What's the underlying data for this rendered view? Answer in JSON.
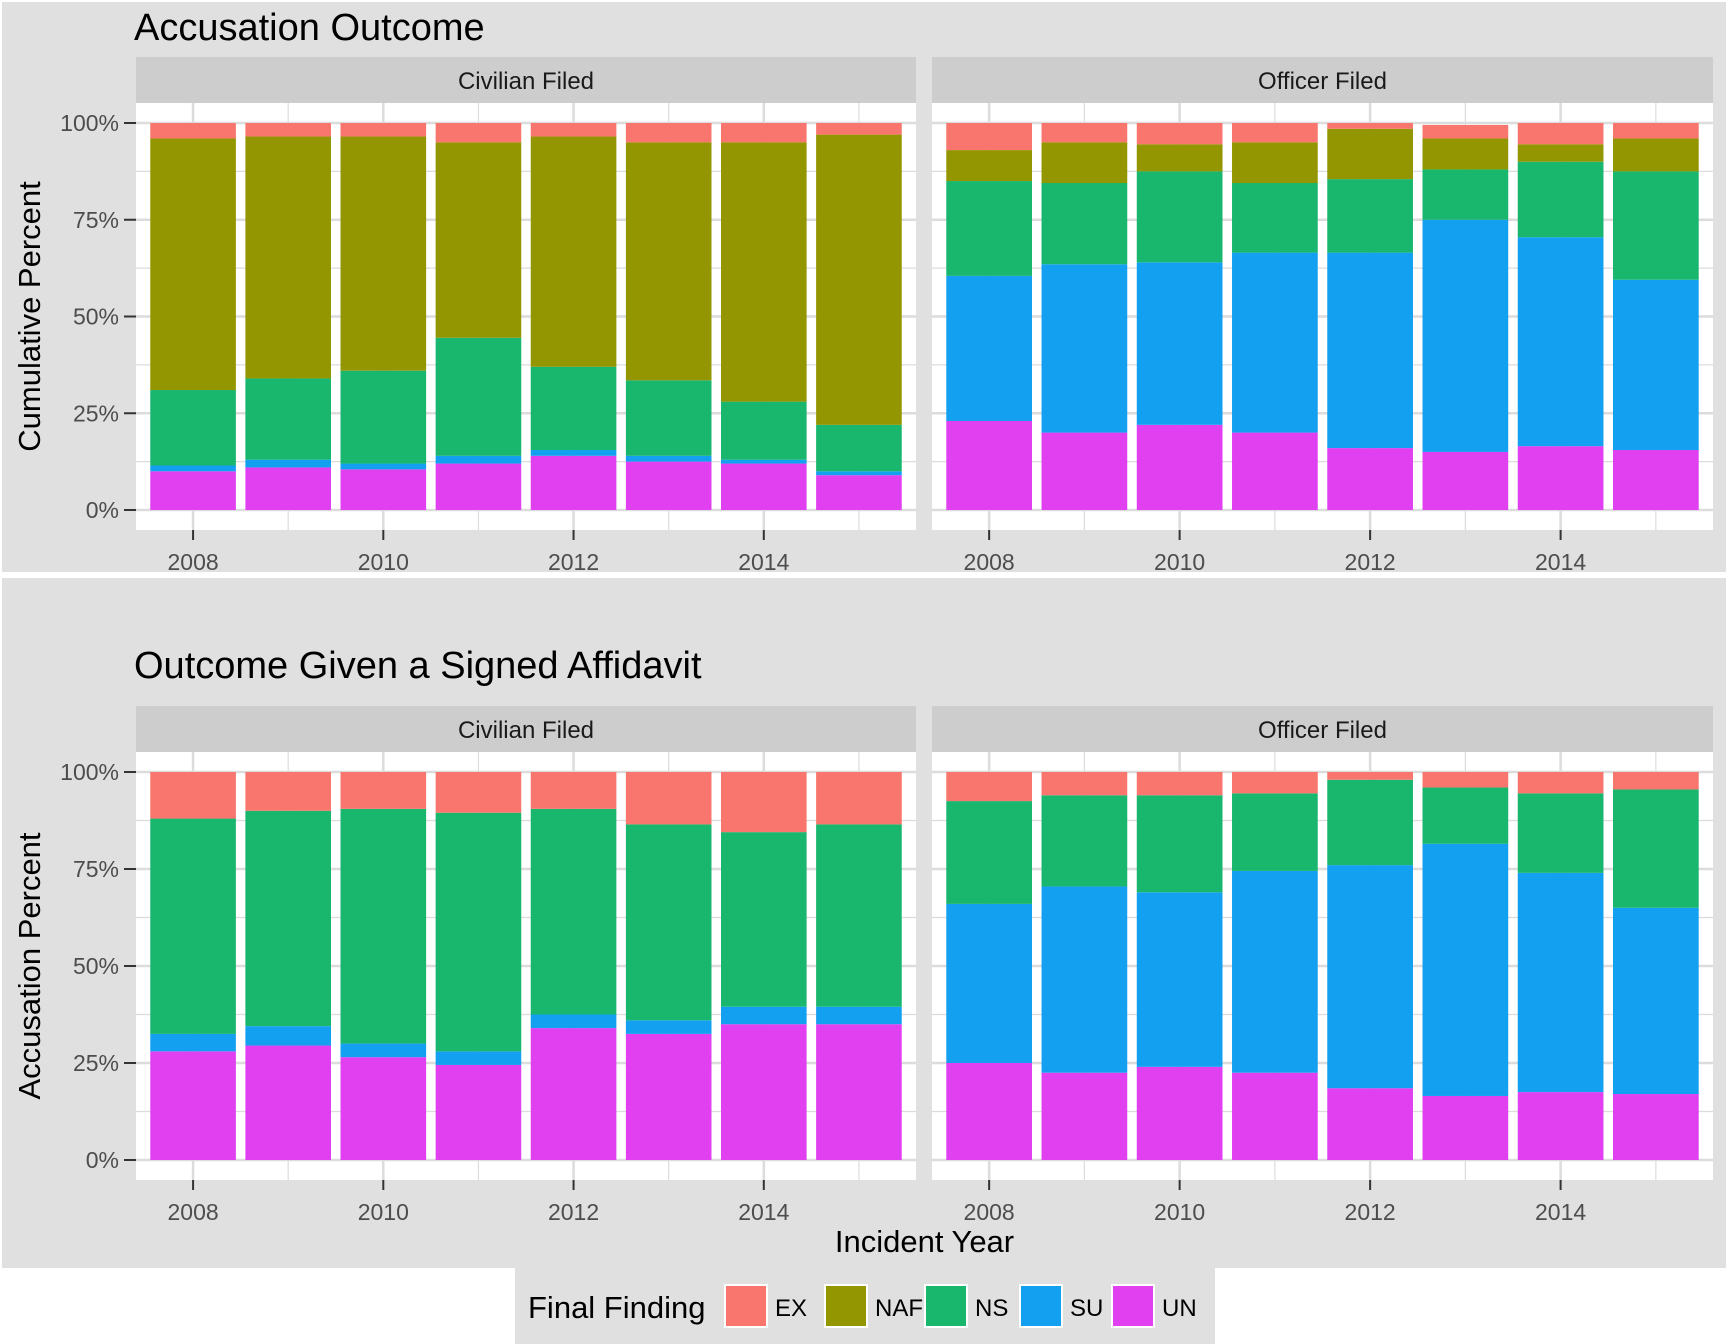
{
  "colors": {
    "EX": "#F8766D",
    "NAF": "#939600",
    "NS": "#19B66E",
    "SU": "#14A0F0",
    "UN": "#E040F0",
    "panel_bg": "#FFFFFF",
    "plot_bg": "#E0E0E0",
    "strip_bg": "#CDCDCD",
    "grid": "#DCDCDC"
  },
  "legend": {
    "title": "Final Finding",
    "items": [
      "EX",
      "NAF",
      "NS",
      "SU",
      "UN"
    ]
  },
  "chart_data": [
    {
      "type": "bar",
      "stacked": true,
      "title": "Accusation Outcome",
      "xlabel": "Incident Year",
      "ylabel": "Cumulative Percent",
      "ylim": [
        0,
        1
      ],
      "yticks": [
        "0%",
        "25%",
        "50%",
        "75%",
        "100%"
      ],
      "xticks": [
        "2008",
        "2010",
        "2012",
        "2014"
      ],
      "facets": [
        {
          "label": "Civilian  Filed",
          "x": [
            2008,
            2009,
            2010,
            2011,
            2012,
            2013,
            2014,
            2015
          ],
          "series": [
            {
              "name": "UN",
              "values": [
                0.1,
                0.11,
                0.105,
                0.12,
                0.14,
                0.125,
                0.12,
                0.09
              ]
            },
            {
              "name": "SU",
              "values": [
                0.015,
                0.02,
                0.015,
                0.02,
                0.015,
                0.015,
                0.01,
                0.01
              ]
            },
            {
              "name": "NS",
              "values": [
                0.195,
                0.21,
                0.24,
                0.305,
                0.215,
                0.195,
                0.15,
                0.12
              ]
            },
            {
              "name": "NAF",
              "values": [
                0.65,
                0.625,
                0.605,
                0.505,
                0.595,
                0.615,
                0.67,
                0.75
              ]
            },
            {
              "name": "EX",
              "values": [
                0.04,
                0.035,
                0.035,
                0.05,
                0.035,
                0.05,
                0.05,
                0.03
              ]
            }
          ]
        },
        {
          "label": "Officer  Filed",
          "x": [
            2008,
            2009,
            2010,
            2011,
            2012,
            2013,
            2014,
            2015
          ],
          "series": [
            {
              "name": "UN",
              "values": [
                0.23,
                0.2,
                0.22,
                0.2,
                0.16,
                0.15,
                0.165,
                0.155
              ]
            },
            {
              "name": "SU",
              "values": [
                0.375,
                0.435,
                0.42,
                0.465,
                0.505,
                0.6,
                0.54,
                0.44
              ]
            },
            {
              "name": "NS",
              "values": [
                0.245,
                0.21,
                0.235,
                0.18,
                0.19,
                0.13,
                0.195,
                0.28
              ]
            },
            {
              "name": "NAF",
              "values": [
                0.08,
                0.105,
                0.07,
                0.105,
                0.13,
                0.08,
                0.045,
                0.085
              ]
            },
            {
              "name": "EX",
              "values": [
                0.07,
                0.05,
                0.055,
                0.05,
                0.015,
                0.035,
                0.055,
                0.04
              ]
            }
          ]
        }
      ]
    },
    {
      "type": "bar",
      "stacked": true,
      "title": "Outcome Given a Signed Affidavit",
      "xlabel": "Incident Year",
      "ylabel": "Accusation Percent",
      "ylim": [
        0,
        1
      ],
      "yticks": [
        "0%",
        "25%",
        "50%",
        "75%",
        "100%"
      ],
      "xticks": [
        "2008",
        "2010",
        "2012",
        "2014"
      ],
      "facets": [
        {
          "label": "Civilian  Filed",
          "x": [
            2008,
            2009,
            2010,
            2011,
            2012,
            2013,
            2014,
            2015
          ],
          "series": [
            {
              "name": "UN",
              "values": [
                0.28,
                0.295,
                0.265,
                0.245,
                0.34,
                0.325,
                0.35,
                0.35
              ]
            },
            {
              "name": "SU",
              "values": [
                0.045,
                0.05,
                0.035,
                0.035,
                0.035,
                0.035,
                0.045,
                0.045
              ]
            },
            {
              "name": "NS",
              "values": [
                0.555,
                0.555,
                0.605,
                0.615,
                0.53,
                0.505,
                0.45,
                0.47
              ]
            },
            {
              "name": "EX",
              "values": [
                0.12,
                0.1,
                0.095,
                0.105,
                0.095,
                0.135,
                0.155,
                0.135
              ]
            }
          ]
        },
        {
          "label": "Officer  Filed",
          "x": [
            2008,
            2009,
            2010,
            2011,
            2012,
            2013,
            2014,
            2015
          ],
          "series": [
            {
              "name": "UN",
              "values": [
                0.25,
                0.225,
                0.24,
                0.225,
                0.185,
                0.165,
                0.175,
                0.17
              ]
            },
            {
              "name": "SU",
              "values": [
                0.41,
                0.48,
                0.45,
                0.52,
                0.575,
                0.65,
                0.565,
                0.48
              ]
            },
            {
              "name": "NS",
              "values": [
                0.265,
                0.235,
                0.25,
                0.2,
                0.22,
                0.145,
                0.205,
                0.305
              ]
            },
            {
              "name": "EX",
              "values": [
                0.075,
                0.06,
                0.06,
                0.055,
                0.02,
                0.04,
                0.055,
                0.045
              ]
            }
          ]
        }
      ]
    }
  ]
}
